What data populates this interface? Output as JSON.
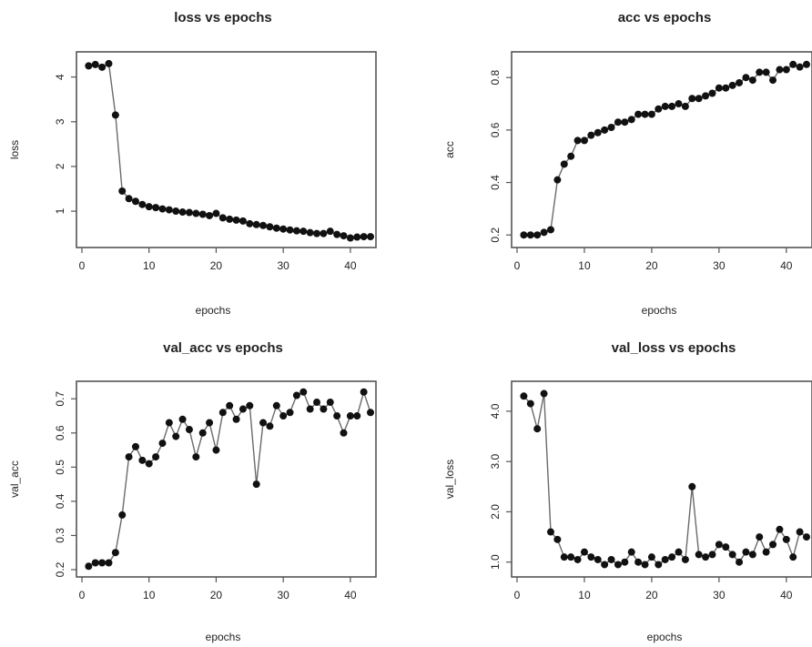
{
  "chart_data": [
    {
      "type": "line",
      "title": "loss vs epochs",
      "xlabel": "epochs",
      "ylabel": "loss",
      "xlim": [
        0,
        43
      ],
      "ylim": [
        0.35,
        4.4
      ],
      "xticks": [
        "0",
        "10",
        "20",
        "30",
        "40"
      ],
      "yticks": [
        "1",
        "2",
        "3",
        "4"
      ],
      "x": [
        1,
        2,
        3,
        4,
        5,
        6,
        7,
        8,
        9,
        10,
        11,
        12,
        13,
        14,
        15,
        16,
        17,
        18,
        19,
        20,
        21,
        22,
        23,
        24,
        25,
        26,
        27,
        28,
        29,
        30,
        31,
        32,
        33,
        34,
        35,
        36,
        37,
        38,
        39,
        40,
        41,
        42,
        43
      ],
      "series": [
        {
          "values": [
            4.25,
            4.28,
            4.22,
            4.3,
            3.15,
            1.45,
            1.28,
            1.22,
            1.15,
            1.1,
            1.08,
            1.05,
            1.03,
            1.0,
            0.98,
            0.97,
            0.95,
            0.93,
            0.9,
            0.95,
            0.85,
            0.82,
            0.8,
            0.78,
            0.72,
            0.7,
            0.68,
            0.65,
            0.62,
            0.6,
            0.58,
            0.56,
            0.55,
            0.52,
            0.5,
            0.5,
            0.55,
            0.48,
            0.45,
            0.4,
            0.42,
            0.43,
            0.43
          ]
        }
      ]
    },
    {
      "type": "line",
      "title": "acc vs epochs",
      "xlabel": "epochs",
      "ylabel": "acc",
      "xlim": [
        0,
        43
      ],
      "ylim": [
        0.18,
        0.87
      ],
      "xticks": [
        "0",
        "10",
        "20",
        "30",
        "40"
      ],
      "yticks": [
        "0.2",
        "0.4",
        "0.6",
        "0.8"
      ],
      "x": [
        1,
        2,
        3,
        4,
        5,
        6,
        7,
        8,
        9,
        10,
        11,
        12,
        13,
        14,
        15,
        16,
        17,
        18,
        19,
        20,
        21,
        22,
        23,
        24,
        25,
        26,
        27,
        28,
        29,
        30,
        31,
        32,
        33,
        34,
        35,
        36,
        37,
        38,
        39,
        40,
        41,
        42,
        43
      ],
      "series": [
        {
          "values": [
            0.2,
            0.2,
            0.2,
            0.21,
            0.22,
            0.41,
            0.47,
            0.5,
            0.56,
            0.56,
            0.58,
            0.59,
            0.6,
            0.61,
            0.63,
            0.63,
            0.64,
            0.66,
            0.66,
            0.66,
            0.68,
            0.69,
            0.69,
            0.7,
            0.69,
            0.72,
            0.72,
            0.73,
            0.74,
            0.76,
            0.76,
            0.77,
            0.78,
            0.8,
            0.79,
            0.82,
            0.82,
            0.79,
            0.83,
            0.83,
            0.85,
            0.84,
            0.85
          ]
        }
      ]
    },
    {
      "type": "line",
      "title": "val_acc vs epochs",
      "xlabel": "epochs",
      "ylabel": "val_acc",
      "xlim": [
        0,
        43
      ],
      "ylim": [
        0.2,
        0.73
      ],
      "xticks": [
        "0",
        "10",
        "20",
        "30",
        "40"
      ],
      "yticks": [
        "0.2",
        "0.3",
        "0.4",
        "0.5",
        "0.6",
        "0.7"
      ],
      "x": [
        1,
        2,
        3,
        4,
        5,
        6,
        7,
        8,
        9,
        10,
        11,
        12,
        13,
        14,
        15,
        16,
        17,
        18,
        19,
        20,
        21,
        22,
        23,
        24,
        25,
        26,
        27,
        28,
        29,
        30,
        31,
        32,
        33,
        34,
        35,
        36,
        37,
        38,
        39,
        40,
        41,
        42,
        43
      ],
      "series": [
        {
          "values": [
            0.21,
            0.22,
            0.22,
            0.22,
            0.25,
            0.36,
            0.53,
            0.56,
            0.52,
            0.51,
            0.53,
            0.57,
            0.63,
            0.59,
            0.64,
            0.61,
            0.53,
            0.6,
            0.63,
            0.55,
            0.66,
            0.68,
            0.64,
            0.67,
            0.68,
            0.45,
            0.63,
            0.62,
            0.68,
            0.65,
            0.66,
            0.71,
            0.72,
            0.67,
            0.69,
            0.67,
            0.69,
            0.65,
            0.6,
            0.65,
            0.65,
            0.72,
            0.66
          ]
        }
      ]
    },
    {
      "type": "line",
      "title": "val_loss vs epochs",
      "xlabel": "epochs",
      "ylabel": "val_loss",
      "xlim": [
        0,
        43
      ],
      "ylim": [
        0.85,
        4.45
      ],
      "xticks": [
        "0",
        "10",
        "20",
        "30",
        "40"
      ],
      "yticks": [
        "1.0",
        "2.0",
        "3.0",
        "4.0"
      ],
      "x": [
        1,
        2,
        3,
        4,
        5,
        6,
        7,
        8,
        9,
        10,
        11,
        12,
        13,
        14,
        15,
        16,
        17,
        18,
        19,
        20,
        21,
        22,
        23,
        24,
        25,
        26,
        27,
        28,
        29,
        30,
        31,
        32,
        33,
        34,
        35,
        36,
        37,
        38,
        39,
        40,
        41,
        42,
        43
      ],
      "series": [
        {
          "values": [
            4.3,
            4.15,
            3.65,
            4.35,
            1.6,
            1.45,
            1.1,
            1.1,
            1.05,
            1.2,
            1.1,
            1.05,
            0.95,
            1.05,
            0.95,
            1.0,
            1.2,
            1.0,
            0.95,
            1.1,
            0.95,
            1.05,
            1.1,
            1.2,
            1.05,
            2.5,
            1.15,
            1.1,
            1.15,
            1.35,
            1.3,
            1.15,
            1.0,
            1.2,
            1.15,
            1.5,
            1.2,
            1.35,
            1.65,
            1.45,
            1.1,
            1.6,
            1.5
          ]
        }
      ]
    }
  ]
}
